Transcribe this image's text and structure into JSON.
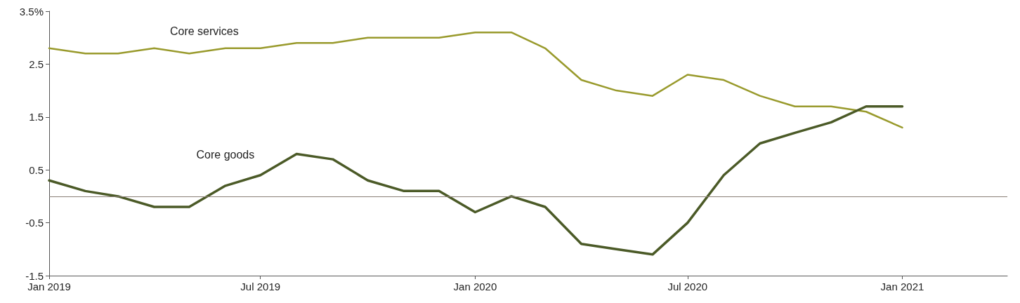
{
  "chart_data": {
    "type": "line",
    "x": [
      "2019-01",
      "2019-02",
      "2019-03",
      "2019-04",
      "2019-05",
      "2019-06",
      "2019-07",
      "2019-08",
      "2019-09",
      "2019-10",
      "2019-11",
      "2019-12",
      "2020-01",
      "2020-02",
      "2020-03",
      "2020-04",
      "2020-05",
      "2020-06",
      "2020-07",
      "2020-08",
      "2020-09",
      "2020-10",
      "2020-11",
      "2020-12",
      "2021-01"
    ],
    "series": [
      {
        "name": "Core services",
        "color": "#999a2c",
        "values": [
          2.8,
          2.7,
          2.7,
          2.8,
          2.7,
          2.8,
          2.8,
          2.9,
          2.9,
          3.0,
          3.0,
          3.0,
          3.1,
          3.1,
          2.8,
          2.2,
          2.0,
          1.9,
          2.3,
          2.2,
          1.9,
          1.7,
          1.7,
          1.6,
          1.3
        ]
      },
      {
        "name": "Core goods",
        "color": "#4b5a27",
        "values": [
          0.3,
          0.1,
          0.0,
          -0.2,
          -0.2,
          0.2,
          0.4,
          0.8,
          0.7,
          0.3,
          0.1,
          0.1,
          -0.3,
          0.0,
          -0.2,
          -0.9,
          -1.0,
          -1.1,
          -0.5,
          0.4,
          1.0,
          1.2,
          1.4,
          1.7,
          1.7
        ]
      }
    ],
    "xlim": [
      "2019-01",
      "2021-04"
    ],
    "xticks": [
      {
        "value": "2019-01",
        "label": "Jan 2019"
      },
      {
        "value": "2019-07",
        "label": "Jul 2019"
      },
      {
        "value": "2020-01",
        "label": "Jan 2020"
      },
      {
        "value": "2020-07",
        "label": "Jul 2020"
      },
      {
        "value": "2021-01",
        "label": "Jan 2021"
      }
    ],
    "ylim": [
      -1.5,
      3.5
    ],
    "yticks": [
      {
        "value": 3.5,
        "label": "3.5%"
      },
      {
        "value": 2.5,
        "label": "2.5"
      },
      {
        "value": 1.5,
        "label": "1.5"
      },
      {
        "value": 0.5,
        "label": "0.5"
      },
      {
        "value": -0.5,
        "label": "-0.5"
      },
      {
        "value": -1.5,
        "label": "-1.5"
      }
    ],
    "ref_lines": [
      {
        "axis": "y",
        "value": 0,
        "color": "#8a7f76"
      }
    ],
    "grid": false,
    "legend": false,
    "marker": "none",
    "line_style": "solid"
  }
}
